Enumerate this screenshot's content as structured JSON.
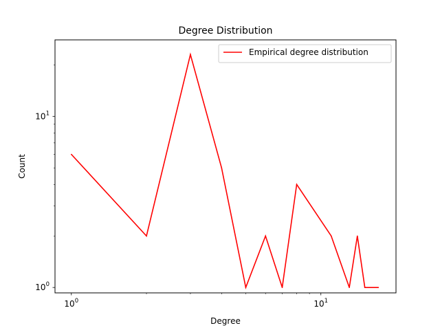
{
  "chart_data": {
    "type": "line",
    "title": "Degree Distribution",
    "xlabel": "Degree",
    "ylabel": "Count",
    "xscale": "log",
    "yscale": "log",
    "xlim": [
      0.86,
      20.0
    ],
    "ylim": [
      0.93,
      28.0
    ],
    "grid": false,
    "legend_position": "top-right",
    "x_ticks": [
      {
        "base": "10",
        "exp": "0",
        "value": 1
      },
      {
        "base": "10",
        "exp": "1",
        "value": 10
      }
    ],
    "y_ticks": [
      {
        "base": "10",
        "exp": "0",
        "value": 1
      },
      {
        "base": "10",
        "exp": "1",
        "value": 10
      }
    ],
    "series": [
      {
        "name": "Empirical degree distribution",
        "color": "#ff0000",
        "x": [
          1,
          2,
          3,
          4,
          5,
          6,
          7,
          8,
          11,
          13,
          14,
          15,
          17
        ],
        "y": [
          6,
          2,
          23,
          5,
          1,
          2,
          1,
          4,
          2,
          1,
          2,
          1,
          1
        ]
      }
    ]
  }
}
